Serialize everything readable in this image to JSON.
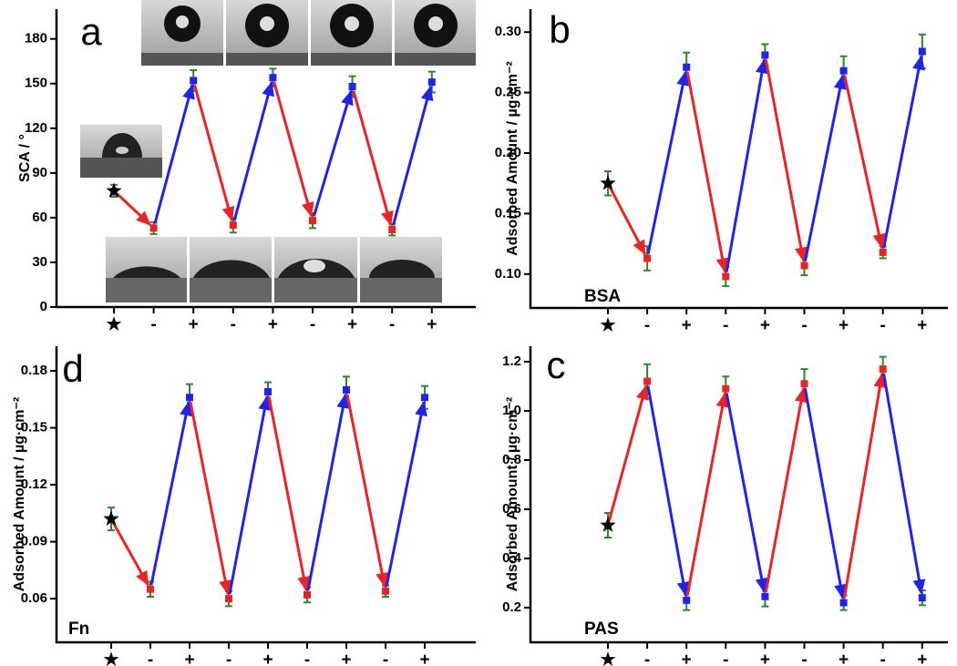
{
  "chart_data": {
    "type": "multi",
    "charts": [
      {
        "type": "line",
        "label": "a",
        "ylabel": "SCA / °",
        "categories": [
          "★",
          "-",
          "+",
          "-",
          "+",
          "-",
          "+",
          "-",
          "+"
        ],
        "values": [
          78,
          53,
          152,
          55,
          154,
          58,
          148,
          52,
          151
        ],
        "errors": [
          4,
          4,
          7,
          5,
          6,
          5,
          7,
          4,
          7
        ],
        "colors": [
          "#000000",
          "#ee2222",
          "#2222ee",
          "#ee2222",
          "#2222ee",
          "#ee2222",
          "#2222ee",
          "#ee2222",
          "#2222ee"
        ],
        "error_color": "#2a8a2a",
        "ylim": [
          0,
          200
        ],
        "yticks": [
          0,
          30,
          60,
          90,
          120,
          150,
          180
        ]
      },
      {
        "type": "line",
        "label": "b",
        "ylabel": "Adsorbed Amount / µg·cm⁻²",
        "annotation": "BSA",
        "categories": [
          "★",
          "-",
          "+",
          "-",
          "+",
          "-",
          "+",
          "-",
          "+"
        ],
        "values": [
          0.175,
          0.113,
          0.271,
          0.098,
          0.281,
          0.107,
          0.268,
          0.118,
          0.284
        ],
        "errors": [
          0.01,
          0.01,
          0.012,
          0.008,
          0.009,
          0.008,
          0.012,
          0.005,
          0.014
        ],
        "colors": [
          "#000000",
          "#ee2222",
          "#2222ee",
          "#ee2222",
          "#2222ee",
          "#ee2222",
          "#2222ee",
          "#ee2222",
          "#2222ee"
        ],
        "error_color": "#2a8a2a",
        "ylim": [
          0.072,
          0.319
        ],
        "yticks": [
          {
            "value": 0.1,
            "label": "0.10"
          },
          0.15,
          {
            "value": 0.2,
            "label": "0.20"
          },
          0.25,
          {
            "value": 0.3,
            "label": "0.30"
          }
        ]
      },
      {
        "type": "line",
        "label": "d",
        "ylabel": "Adsorbed Amount / µg·cm⁻²",
        "annotation": "Fn",
        "categories": [
          "★",
          "-",
          "+",
          "-",
          "+",
          "-",
          "+",
          "-",
          "+"
        ],
        "values": [
          0.102,
          0.065,
          0.166,
          0.06,
          0.169,
          0.062,
          0.17,
          0.064,
          0.166
        ],
        "errors": [
          0.006,
          0.004,
          0.007,
          0.004,
          0.005,
          0.004,
          0.007,
          0.003,
          0.006
        ],
        "colors": [
          "#000000",
          "#ee2222",
          "#2222ee",
          "#ee2222",
          "#2222ee",
          "#ee2222",
          "#2222ee",
          "#ee2222",
          "#2222ee"
        ],
        "error_color": "#2a8a2a",
        "ylim": [
          0.037,
          0.193
        ],
        "yticks": [
          0.06,
          0.09,
          0.12,
          0.15,
          0.18
        ]
      },
      {
        "type": "line",
        "label": "c",
        "ylabel": "Adsorbed Amount / µg·cm⁻²",
        "annotation": "PAS",
        "categories": [
          "★",
          "-",
          "+",
          "-",
          "+",
          "-",
          "+",
          "-",
          "+"
        ],
        "values": [
          0.535,
          1.12,
          0.23,
          1.09,
          0.245,
          1.11,
          0.22,
          1.17,
          0.24
        ],
        "errors": [
          0.05,
          0.07,
          0.04,
          0.05,
          0.04,
          0.06,
          0.03,
          0.05,
          0.03
        ],
        "colors": [
          "#000000",
          "#ee2222",
          "#2222ee",
          "#ee2222",
          "#2222ee",
          "#ee2222",
          "#2222ee",
          "#ee2222",
          "#2222ee"
        ],
        "error_color": "#2a8a2a",
        "ylim": [
          0.059,
          1.263
        ],
        "yticks": [
          0.2,
          0.4,
          0.6,
          0.8,
          {
            "value": 1.0,
            "label": "1.0"
          },
          1.2
        ]
      }
    ]
  }
}
